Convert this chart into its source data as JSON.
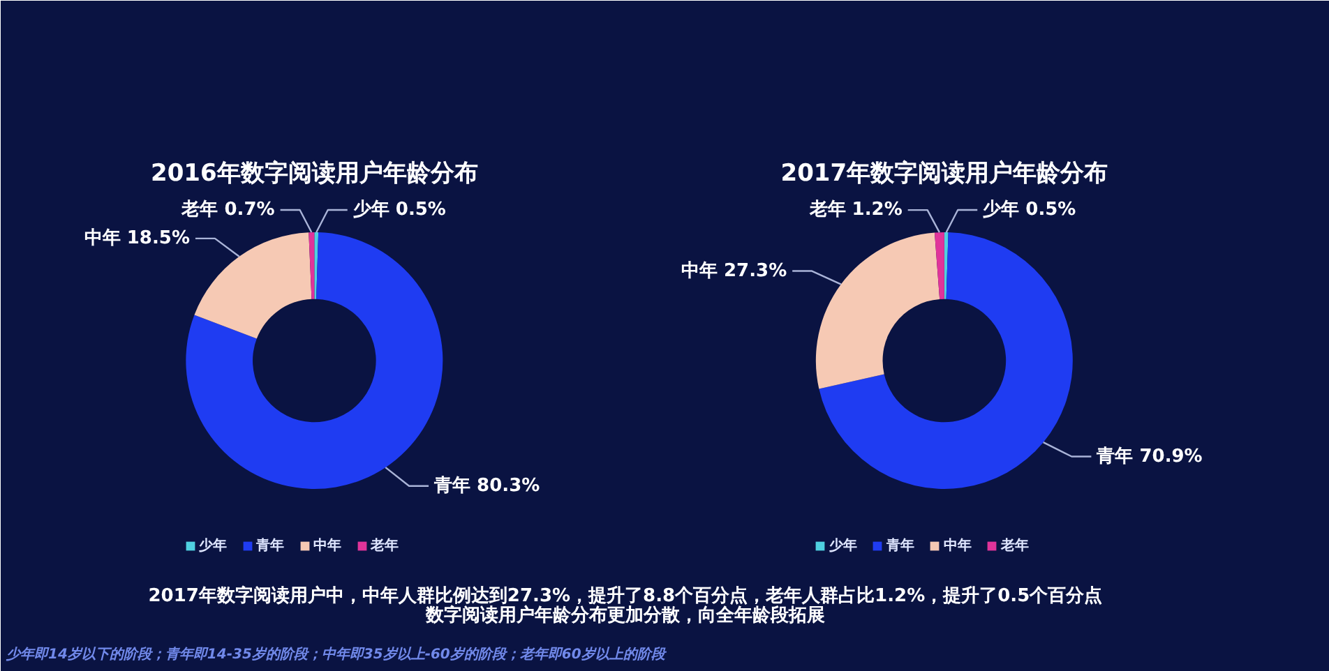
{
  "chart_data": [
    {
      "type": "donut",
      "title": "2016年数字阅读用户年龄分布",
      "categories": [
        "少年",
        "青年",
        "中年",
        "老年"
      ],
      "values": [
        0.5,
        80.3,
        18.5,
        0.7
      ],
      "value_labels": [
        "0.5%",
        "80.3%",
        "18.5%",
        "0.7%"
      ],
      "colors": [
        "#4fd0e0",
        "#1f3cf2",
        "#f6c9b4",
        "#e0349a"
      ],
      "legend": "bottom"
    },
    {
      "type": "donut",
      "title": "2017年数字阅读用户年龄分布",
      "categories": [
        "少年",
        "青年",
        "中年",
        "老年"
      ],
      "values": [
        0.5,
        70.9,
        27.3,
        1.2
      ],
      "value_labels": [
        "0.5%",
        "70.9%",
        "27.3%",
        "1.2%"
      ],
      "colors": [
        "#4fd0e0",
        "#1f3cf2",
        "#f6c9b4",
        "#e0349a"
      ],
      "legend": "bottom",
      "annotations": [
        "2017年数字阅读用户中，中年人群比例达到27.3%，提升了8.8个百分点，老年人群占比1.2%，提升了0.5个百分点",
        "数字阅读用户年龄分布更加分散，向全年龄段拓展",
        "少年即14岁以下的阶段；青年即14-35岁的阶段；中年即35岁以上-60岁的阶段；老年即60岁以上的阶段"
      ]
    }
  ]
}
